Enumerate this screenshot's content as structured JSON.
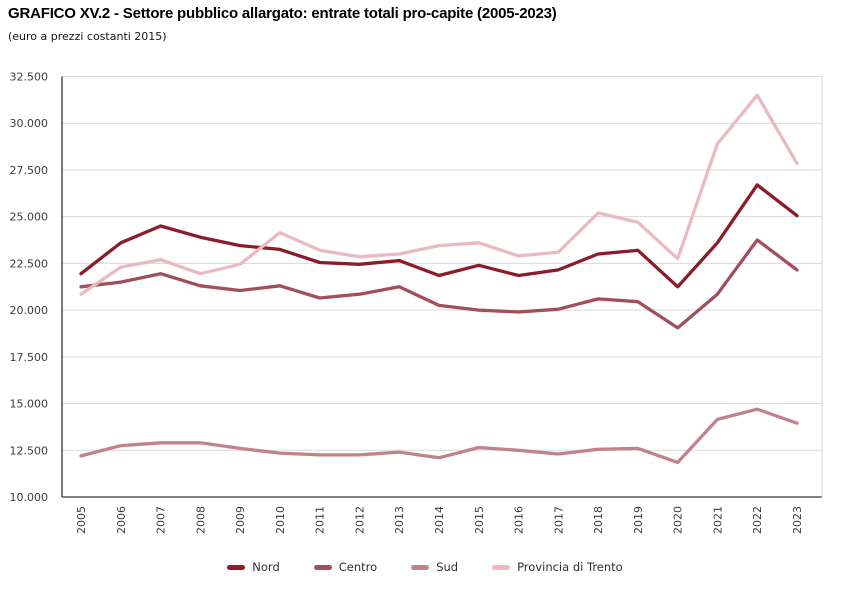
{
  "chart_data": {
    "type": "line",
    "title": "GRAFICO XV.2 - Settore pubblico allargato: entrate totali pro-capite (2005-2023)",
    "subtitle": "(euro a prezzi costanti 2015)",
    "x": [
      "2005",
      "2006",
      "2007",
      "2008",
      "2009",
      "2010",
      "2011",
      "2012",
      "2013",
      "2014",
      "2015",
      "2016",
      "2017",
      "2018",
      "2019",
      "2020",
      "2021",
      "2022",
      "2023"
    ],
    "ylim": [
      10000,
      32500
    ],
    "grid": "horizontal",
    "legend_position": "bottom",
    "y_ticks": [
      {
        "value": 10000,
        "label": "10.000"
      },
      {
        "value": 12500,
        "label": "12.500"
      },
      {
        "value": 15000,
        "label": "15.000"
      },
      {
        "value": 17500,
        "label": "17.500"
      },
      {
        "value": 20000,
        "label": "20.000"
      },
      {
        "value": 22500,
        "label": "22.500"
      },
      {
        "value": 25000,
        "label": "25.000"
      },
      {
        "value": 27500,
        "label": "27.500"
      },
      {
        "value": 30000,
        "label": "30.000"
      },
      {
        "value": 32500,
        "label": "32.500"
      }
    ],
    "series": [
      {
        "name": "Nord",
        "color": "#8a1c2b",
        "values": [
          21950,
          23600,
          24500,
          23900,
          23450,
          23250,
          22550,
          22450,
          22650,
          21850,
          22400,
          21850,
          22150,
          23000,
          23200,
          21250,
          23600,
          26700,
          25050
        ]
      },
      {
        "name": "Centro",
        "color": "#a24f5c",
        "values": [
          21250,
          21500,
          21950,
          21300,
          21050,
          21300,
          20650,
          20850,
          21250,
          20250,
          20000,
          19900,
          20050,
          20600,
          20450,
          19050,
          20850,
          23750,
          22150
        ]
      },
      {
        "name": "Sud",
        "color": "#c2828c",
        "values": [
          12200,
          12750,
          12900,
          12900,
          12600,
          12350,
          12250,
          12250,
          12400,
          12100,
          12650,
          12500,
          12300,
          12550,
          12600,
          11850,
          14150,
          14700,
          13950
        ]
      },
      {
        "name": "Provincia di Trento",
        "color": "#e9bac1",
        "values": [
          20850,
          22300,
          22700,
          21950,
          22450,
          24150,
          23200,
          22850,
          23000,
          23450,
          23600,
          22900,
          23100,
          25200,
          24700,
          22750,
          28900,
          31500,
          27850
        ]
      }
    ],
    "colors": {
      "grid": "#d9d9d9",
      "axis": "#333333",
      "tick_text": "#3c3c3c"
    }
  }
}
